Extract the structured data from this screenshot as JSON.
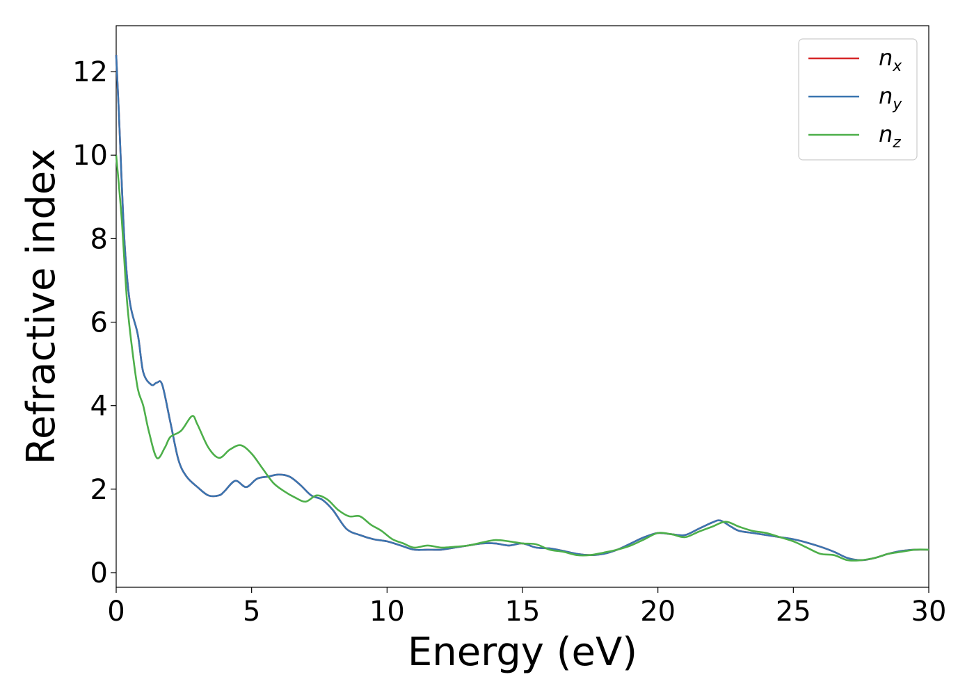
{
  "chart_data": {
    "type": "line",
    "xlabel": "Energy (eV)",
    "ylabel": "Refractive index",
    "xlim": [
      0,
      30
    ],
    "ylim": [
      -0.35,
      13.1
    ],
    "xticks": [
      "0",
      "5",
      "10",
      "15",
      "20",
      "25",
      "30"
    ],
    "yticks": [
      "0",
      "2",
      "4",
      "6",
      "8",
      "10",
      "12"
    ],
    "grid": false,
    "legend": "upper right",
    "series": [
      {
        "name": "n",
        "sub": "x",
        "color": "#d62728",
        "x": [
          0,
          0.1,
          0.3,
          0.5,
          0.8,
          1.0,
          1.3,
          1.5,
          1.7,
          2.0,
          2.3,
          2.6,
          3.0,
          3.4,
          3.8,
          4.0,
          4.4,
          4.8,
          5.2,
          5.6,
          6.0,
          6.4,
          6.8,
          7.2,
          7.6,
          8.0,
          8.5,
          9.0,
          9.5,
          10.0,
          10.5,
          11.0,
          11.5,
          12.0,
          12.5,
          13.0,
          13.5,
          14.0,
          14.5,
          15.0,
          15.5,
          16.0,
          16.5,
          17.0,
          17.5,
          18.0,
          18.5,
          19.0,
          19.5,
          20.0,
          20.5,
          21.0,
          21.5,
          22.0,
          22.3,
          22.7,
          23.0,
          23.5,
          24.0,
          24.5,
          25.0,
          25.5,
          26.0,
          26.5,
          27.0,
          27.5,
          28.0,
          28.5,
          29.0,
          29.5,
          30.0
        ],
        "y": [
          12.4,
          11.0,
          8.0,
          6.5,
          5.7,
          4.8,
          4.5,
          4.55,
          4.5,
          3.6,
          2.7,
          2.3,
          2.05,
          1.85,
          1.85,
          1.95,
          2.2,
          2.05,
          2.25,
          2.3,
          2.35,
          2.3,
          2.1,
          1.85,
          1.75,
          1.5,
          1.05,
          0.9,
          0.8,
          0.75,
          0.65,
          0.55,
          0.55,
          0.55,
          0.6,
          0.65,
          0.7,
          0.7,
          0.65,
          0.7,
          0.6,
          0.58,
          0.52,
          0.45,
          0.42,
          0.45,
          0.55,
          0.7,
          0.85,
          0.95,
          0.92,
          0.9,
          1.05,
          1.2,
          1.25,
          1.1,
          1.0,
          0.95,
          0.9,
          0.85,
          0.8,
          0.72,
          0.62,
          0.5,
          0.35,
          0.3,
          0.35,
          0.45,
          0.52,
          0.55,
          0.55
        ]
      },
      {
        "name": "n",
        "sub": "y",
        "color": "#3a75b0",
        "x": [
          0,
          0.1,
          0.3,
          0.5,
          0.8,
          1.0,
          1.3,
          1.5,
          1.7,
          2.0,
          2.3,
          2.6,
          3.0,
          3.4,
          3.8,
          4.0,
          4.4,
          4.8,
          5.2,
          5.6,
          6.0,
          6.4,
          6.8,
          7.2,
          7.6,
          8.0,
          8.5,
          9.0,
          9.5,
          10.0,
          10.5,
          11.0,
          11.5,
          12.0,
          12.5,
          13.0,
          13.5,
          14.0,
          14.5,
          15.0,
          15.5,
          16.0,
          16.5,
          17.0,
          17.5,
          18.0,
          18.5,
          19.0,
          19.5,
          20.0,
          20.5,
          21.0,
          21.5,
          22.0,
          22.3,
          22.7,
          23.0,
          23.5,
          24.0,
          24.5,
          25.0,
          25.5,
          26.0,
          26.5,
          27.0,
          27.5,
          28.0,
          28.5,
          29.0,
          29.5,
          30.0
        ],
        "y": [
          12.4,
          11.0,
          8.0,
          6.5,
          5.7,
          4.8,
          4.5,
          4.55,
          4.5,
          3.6,
          2.7,
          2.3,
          2.05,
          1.85,
          1.85,
          1.95,
          2.2,
          2.05,
          2.25,
          2.3,
          2.35,
          2.3,
          2.1,
          1.85,
          1.75,
          1.5,
          1.05,
          0.9,
          0.8,
          0.75,
          0.65,
          0.55,
          0.55,
          0.55,
          0.6,
          0.65,
          0.7,
          0.7,
          0.65,
          0.7,
          0.6,
          0.58,
          0.52,
          0.45,
          0.42,
          0.45,
          0.55,
          0.7,
          0.85,
          0.95,
          0.92,
          0.9,
          1.05,
          1.2,
          1.25,
          1.1,
          1.0,
          0.95,
          0.9,
          0.85,
          0.8,
          0.72,
          0.62,
          0.5,
          0.35,
          0.3,
          0.35,
          0.45,
          0.52,
          0.55,
          0.55
        ]
      },
      {
        "name": "n",
        "sub": "z",
        "color": "#4daf4a",
        "x": [
          0,
          0.2,
          0.4,
          0.6,
          0.8,
          1.0,
          1.2,
          1.5,
          1.8,
          2.0,
          2.4,
          2.8,
          3.0,
          3.4,
          3.8,
          4.2,
          4.6,
          5.0,
          5.4,
          5.8,
          6.2,
          6.6,
          7.0,
          7.4,
          7.8,
          8.2,
          8.6,
          9.0,
          9.4,
          9.8,
          10.2,
          10.6,
          11.0,
          11.5,
          12.0,
          12.5,
          13.0,
          13.5,
          14.0,
          14.5,
          15.0,
          15.5,
          16.0,
          16.5,
          17.0,
          17.5,
          18.0,
          18.5,
          19.0,
          19.5,
          20.0,
          20.5,
          21.0,
          21.5,
          22.0,
          22.5,
          23.0,
          23.5,
          24.0,
          24.5,
          25.0,
          25.5,
          26.0,
          26.5,
          27.0,
          27.5,
          28.0,
          28.5,
          29.0,
          29.5,
          30.0
        ],
        "y": [
          10.0,
          8.5,
          6.5,
          5.3,
          4.4,
          4.0,
          3.4,
          2.75,
          3.0,
          3.25,
          3.4,
          3.75,
          3.55,
          3.0,
          2.75,
          2.95,
          3.05,
          2.85,
          2.5,
          2.15,
          1.95,
          1.8,
          1.7,
          1.85,
          1.75,
          1.5,
          1.35,
          1.35,
          1.15,
          1.0,
          0.8,
          0.7,
          0.6,
          0.65,
          0.6,
          0.62,
          0.65,
          0.72,
          0.78,
          0.75,
          0.7,
          0.68,
          0.55,
          0.5,
          0.42,
          0.42,
          0.48,
          0.55,
          0.65,
          0.8,
          0.95,
          0.92,
          0.85,
          0.98,
          1.1,
          1.22,
          1.1,
          1.0,
          0.95,
          0.85,
          0.75,
          0.6,
          0.45,
          0.42,
          0.3,
          0.3,
          0.35,
          0.45,
          0.5,
          0.55,
          0.55
        ]
      }
    ]
  }
}
